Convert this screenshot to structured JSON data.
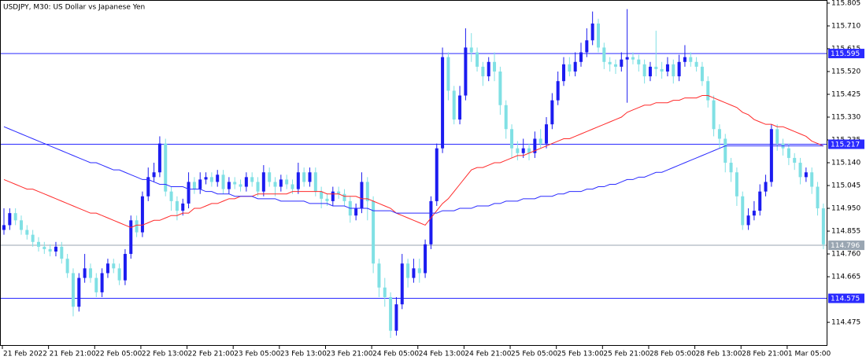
{
  "chart_data": {
    "type": "candlestick",
    "title": "USDJPY, M30:  US Dollar vs Japanese Yen",
    "categories": [
      "21 Feb 2022",
      null,
      null,
      null,
      null,
      null,
      null,
      null,
      "21 Feb 21:00",
      null,
      null,
      null,
      null,
      null,
      null,
      null,
      "22 Feb 05:00",
      null,
      null,
      null,
      null,
      null,
      null,
      null,
      "22 Feb 13:00",
      null,
      null,
      null,
      null,
      null,
      null,
      null,
      "22 Feb 21:00",
      null,
      null,
      null,
      null,
      null,
      null,
      null,
      "23 Feb 05:00",
      null,
      null,
      null,
      null,
      null,
      null,
      null,
      "23 Feb 13:00",
      null,
      null,
      null,
      null,
      null,
      null,
      null,
      "23 Feb 21:00",
      null,
      null,
      null,
      null,
      null,
      null,
      null,
      "24 Feb 05:00",
      null,
      null,
      null,
      null,
      null,
      null,
      null,
      "24 Feb 13:00",
      null,
      null,
      null,
      null,
      null,
      null,
      null,
      "24 Feb 21:00",
      null,
      null,
      null,
      null,
      null,
      null,
      null,
      "25 Feb 05:00",
      null,
      null,
      null,
      null,
      null,
      null,
      null,
      "25 Feb 13:00",
      null,
      null,
      null,
      null,
      null,
      null,
      null,
      "25 Feb 21:00",
      null,
      null,
      null,
      null,
      null,
      null,
      null,
      "28 Feb 05:00",
      null,
      null,
      null,
      null,
      null,
      null,
      null,
      "28 Feb 13:00",
      null,
      null,
      null,
      null,
      null,
      null,
      null,
      "28 Feb 21:00",
      null,
      null,
      null,
      null,
      null,
      null,
      null,
      "1 Mar 05:00",
      null,
      null,
      null,
      null,
      null,
      null
    ],
    "candles": {
      "open": [
        114.86,
        114.88,
        114.93,
        114.9,
        114.86,
        114.84,
        114.81,
        114.79,
        114.78,
        114.77,
        114.79,
        114.74,
        114.68,
        114.54,
        114.66,
        114.7,
        114.66,
        114.6,
        114.68,
        114.72,
        114.7,
        114.65,
        114.76,
        114.9,
        114.85,
        115.0,
        115.08,
        115.1,
        115.22,
        115.02,
        114.98,
        114.94,
        114.97,
        115.06,
        115.03,
        115.07,
        115.08,
        115.06,
        115.09,
        115.03,
        115.06,
        115.05,
        115.04,
        115.08,
        115.06,
        115.02,
        115.1,
        115.06,
        115.04,
        115.07,
        115.05,
        115.03,
        115.1,
        115.06,
        115.1,
        115.02,
        114.99,
        114.98,
        115.02,
        115.01,
        114.98,
        114.92,
        114.95,
        115.06,
        114.98,
        114.72,
        114.62,
        114.58,
        114.44,
        114.55,
        114.72,
        114.66,
        114.7,
        114.68,
        114.8,
        114.98,
        115.2,
        115.58,
        115.44,
        115.32,
        115.42,
        115.62,
        115.6,
        115.54,
        115.5,
        115.56,
        115.52,
        115.38,
        115.28,
        115.2,
        115.18,
        115.2,
        115.18,
        115.24,
        115.22,
        115.3,
        115.4,
        115.48,
        115.55,
        115.52,
        115.56,
        115.6,
        115.65,
        115.72,
        115.62,
        115.56,
        115.55,
        115.54,
        115.57,
        115.58,
        115.57,
        115.55,
        115.5,
        115.54,
        115.53,
        115.52,
        115.55,
        115.5,
        115.56,
        115.58,
        115.56,
        115.54,
        115.48,
        115.4,
        115.28,
        115.24,
        115.14,
        115.1,
        115.0,
        114.88,
        114.92,
        114.94,
        115.02,
        115.06,
        115.28,
        115.22,
        115.2,
        115.16,
        115.14,
        115.08,
        115.1,
        115.04,
        114.95
      ],
      "high": [
        114.95,
        114.95,
        114.95,
        114.92,
        114.88,
        114.86,
        114.83,
        114.81,
        114.8,
        114.81,
        114.81,
        114.76,
        114.7,
        114.68,
        114.76,
        114.72,
        114.68,
        114.7,
        114.74,
        114.74,
        114.72,
        114.78,
        114.92,
        114.92,
        115.02,
        115.12,
        115.14,
        115.25,
        115.24,
        115.04,
        115.0,
        114.99,
        115.1,
        115.08,
        115.1,
        115.1,
        115.1,
        115.11,
        115.11,
        115.08,
        115.08,
        115.07,
        115.1,
        115.1,
        115.08,
        115.13,
        115.12,
        115.08,
        115.09,
        115.09,
        115.07,
        115.14,
        115.12,
        115.12,
        115.12,
        115.04,
        115.01,
        115.04,
        115.04,
        115.03,
        115.0,
        114.97,
        115.1,
        115.08,
        115.0,
        114.74,
        114.66,
        114.6,
        114.58,
        114.76,
        114.74,
        114.74,
        114.74,
        114.82,
        115.0,
        115.22,
        115.62,
        115.6,
        115.46,
        115.46,
        115.7,
        115.68,
        115.62,
        115.56,
        115.58,
        115.6,
        115.54,
        115.4,
        115.3,
        115.23,
        115.24,
        115.22,
        115.27,
        115.28,
        115.33,
        115.43,
        115.52,
        115.58,
        115.58,
        115.6,
        115.64,
        115.7,
        115.77,
        115.74,
        115.64,
        115.58,
        115.57,
        115.6,
        115.78,
        115.6,
        115.59,
        115.57,
        115.56,
        115.69,
        115.56,
        115.58,
        115.57,
        115.59,
        115.63,
        115.6,
        115.58,
        115.56,
        115.5,
        115.42,
        115.3,
        115.26,
        115.16,
        115.12,
        115.02,
        114.95,
        114.98,
        115.05,
        115.09,
        115.3,
        115.3,
        115.24,
        115.22,
        115.18,
        115.16,
        115.12,
        115.12,
        115.06,
        114.97
      ],
      "low": [
        114.84,
        114.86,
        114.88,
        114.84,
        114.82,
        114.79,
        114.77,
        114.76,
        114.75,
        114.75,
        114.72,
        114.66,
        114.5,
        114.52,
        114.64,
        114.64,
        114.58,
        114.58,
        114.66,
        114.68,
        114.63,
        114.63,
        114.74,
        114.83,
        114.83,
        114.98,
        115.06,
        115.08,
        115.0,
        114.94,
        114.9,
        114.92,
        114.95,
        115.01,
        115.01,
        115.05,
        115.04,
        115.04,
        115.01,
        115.01,
        115.03,
        115.02,
        115.02,
        115.04,
        115.0,
        115.0,
        115.04,
        115.0,
        115.02,
        115.03,
        115.01,
        115.01,
        115.04,
        115.04,
        115.0,
        114.95,
        114.96,
        114.96,
        114.99,
        114.96,
        114.89,
        114.9,
        114.93,
        114.9,
        114.68,
        114.58,
        114.54,
        114.41,
        114.42,
        114.53,
        114.62,
        114.64,
        114.64,
        114.66,
        114.78,
        114.96,
        115.18,
        115.4,
        115.3,
        115.3,
        115.4,
        115.56,
        115.52,
        115.46,
        115.48,
        115.48,
        115.34,
        115.24,
        115.16,
        115.15,
        115.16,
        115.15,
        115.16,
        115.2,
        115.2,
        115.28,
        115.38,
        115.46,
        115.5,
        115.5,
        115.54,
        115.58,
        115.63,
        115.6,
        115.53,
        115.52,
        115.51,
        115.52,
        115.39,
        115.55,
        115.52,
        115.47,
        115.48,
        115.5,
        115.49,
        115.5,
        115.47,
        115.48,
        115.54,
        115.54,
        115.52,
        115.46,
        115.37,
        115.25,
        115.2,
        115.1,
        115.06,
        114.96,
        114.86,
        114.86,
        114.9,
        114.92,
        115.0,
        115.04,
        115.19,
        115.17,
        115.13,
        115.11,
        115.05,
        115.06,
        115.01,
        114.92,
        114.78
      ],
      "close": [
        114.88,
        114.93,
        114.9,
        114.86,
        114.84,
        114.81,
        114.79,
        114.78,
        114.77,
        114.79,
        114.74,
        114.68,
        114.54,
        114.66,
        114.7,
        114.66,
        114.6,
        114.68,
        114.72,
        114.7,
        114.65,
        114.76,
        114.9,
        114.85,
        115.0,
        115.08,
        115.1,
        115.22,
        115.02,
        114.98,
        114.94,
        114.97,
        115.06,
        115.03,
        115.07,
        115.08,
        115.06,
        115.09,
        115.03,
        115.06,
        115.05,
        115.04,
        115.08,
        115.06,
        115.02,
        115.1,
        115.06,
        115.04,
        115.07,
        115.05,
        115.03,
        115.1,
        115.06,
        115.1,
        115.02,
        114.99,
        114.98,
        115.02,
        115.01,
        114.98,
        114.92,
        114.95,
        115.06,
        114.98,
        114.72,
        114.62,
        114.58,
        114.44,
        114.55,
        114.72,
        114.66,
        114.7,
        114.68,
        114.8,
        114.98,
        115.2,
        115.58,
        115.44,
        115.32,
        115.42,
        115.62,
        115.6,
        115.54,
        115.5,
        115.56,
        115.52,
        115.38,
        115.28,
        115.2,
        115.18,
        115.2,
        115.18,
        115.24,
        115.22,
        115.3,
        115.4,
        115.48,
        115.55,
        115.52,
        115.56,
        115.6,
        115.65,
        115.72,
        115.62,
        115.56,
        115.55,
        115.54,
        115.57,
        115.58,
        115.57,
        115.55,
        115.5,
        115.54,
        115.53,
        115.52,
        115.55,
        115.5,
        115.56,
        115.58,
        115.56,
        115.54,
        115.48,
        115.4,
        115.28,
        115.24,
        115.14,
        115.1,
        115.0,
        114.88,
        114.92,
        114.94,
        115.02,
        115.06,
        115.28,
        115.22,
        115.2,
        115.16,
        115.14,
        115.08,
        115.1,
        115.04,
        114.95,
        114.8
      ],
      "up_color": "#1c1cf0",
      "down_color": "#80e0e4"
    },
    "lines": [
      {
        "color": "#ff2a2a",
        "values": [
          115.07,
          115.06,
          115.05,
          115.04,
          115.03,
          115.03,
          115.02,
          115.01,
          115.0,
          114.99,
          114.98,
          114.97,
          114.96,
          114.95,
          114.94,
          114.93,
          114.93,
          114.92,
          114.91,
          114.9,
          114.89,
          114.88,
          114.87,
          114.88,
          114.88,
          114.89,
          114.9,
          114.9,
          114.91,
          114.92,
          114.92,
          114.93,
          114.93,
          114.95,
          114.95,
          114.96,
          114.97,
          114.97,
          114.98,
          114.99,
          114.99,
          115.0,
          115.0,
          115.0,
          115.01,
          115.01,
          115.01,
          115.01,
          115.01,
          115.01,
          115.02,
          115.02,
          115.02,
          115.02,
          115.02,
          115.02,
          115.01,
          115.01,
          115.01,
          115.0,
          115.0,
          115.0,
          114.99,
          114.99,
          114.98,
          114.97,
          114.96,
          114.95,
          114.93,
          114.92,
          114.91,
          114.9,
          114.89,
          114.88,
          114.91,
          114.94,
          114.97,
          114.99,
          115.02,
          115.05,
          115.08,
          115.11,
          115.12,
          115.12,
          115.13,
          115.14,
          115.14,
          115.15,
          115.16,
          115.17,
          115.17,
          115.18,
          115.19,
          115.2,
          115.21,
          115.22,
          115.23,
          115.24,
          115.24,
          115.25,
          115.26,
          115.27,
          115.28,
          115.29,
          115.3,
          115.31,
          115.32,
          115.33,
          115.35,
          115.36,
          115.37,
          115.38,
          115.38,
          115.39,
          115.39,
          115.39,
          115.4,
          115.4,
          115.41,
          115.41,
          115.41,
          115.42,
          115.42,
          115.41,
          115.4,
          115.39,
          115.38,
          115.37,
          115.35,
          115.34,
          115.32,
          115.31,
          115.3,
          115.3,
          115.29,
          115.29,
          115.28,
          115.27,
          115.26,
          115.25,
          115.23,
          115.22,
          115.21
        ]
      },
      {
        "color": "#2a2aff",
        "values": [
          115.29,
          115.28,
          115.27,
          115.26,
          115.25,
          115.24,
          115.23,
          115.22,
          115.21,
          115.2,
          115.19,
          115.18,
          115.17,
          115.16,
          115.15,
          115.14,
          115.14,
          115.13,
          115.12,
          115.11,
          115.11,
          115.1,
          115.09,
          115.08,
          115.07,
          115.07,
          115.06,
          115.05,
          115.05,
          115.04,
          115.04,
          115.04,
          115.03,
          115.03,
          115.03,
          115.02,
          115.02,
          115.01,
          115.01,
          115.01,
          115.0,
          115.0,
          115.0,
          115.0,
          114.99,
          114.99,
          114.99,
          114.99,
          114.98,
          114.98,
          114.98,
          114.98,
          114.98,
          114.97,
          114.97,
          114.97,
          114.97,
          114.96,
          114.96,
          114.96,
          114.95,
          114.95,
          114.95,
          114.95,
          114.94,
          114.94,
          114.94,
          114.94,
          114.93,
          114.93,
          114.93,
          114.93,
          114.93,
          114.93,
          114.93,
          114.93,
          114.94,
          114.94,
          114.94,
          114.95,
          114.95,
          114.95,
          114.96,
          114.96,
          114.96,
          114.97,
          114.97,
          114.98,
          114.98,
          114.98,
          114.99,
          114.99,
          114.99,
          115.0,
          115.0,
          115.0,
          115.01,
          115.01,
          115.02,
          115.02,
          115.02,
          115.03,
          115.03,
          115.04,
          115.04,
          115.05,
          115.05,
          115.06,
          115.07,
          115.07,
          115.08,
          115.08,
          115.09,
          115.1,
          115.1,
          115.11,
          115.12,
          115.13,
          115.14,
          115.15,
          115.16,
          115.17,
          115.18,
          115.19,
          115.2,
          115.21,
          115.21,
          115.21,
          115.21,
          115.21,
          115.21,
          115.21,
          115.21,
          115.21,
          115.21,
          115.21,
          115.21,
          115.21,
          115.21,
          115.21,
          115.21,
          115.21,
          115.21
        ]
      }
    ],
    "levels": [
      {
        "value": 115.595,
        "color": "#2a2aff"
      },
      {
        "value": 115.217,
        "color": "#2a2aff"
      },
      {
        "value": 114.575,
        "color": "#2a2aff"
      }
    ],
    "price_line": {
      "value": 114.796,
      "color": "#9aa6b2"
    },
    "ylim": [
      114.377,
      115.818
    ],
    "yticks": [
      115.805,
      {
        "value": 115.71,
        "label": "115.710"
      },
      115.615,
      {
        "value": 115.52,
        "label": "115.520"
      },
      115.425,
      {
        "value": 115.33,
        "label": "115.330"
      },
      115.235,
      {
        "value": 115.14,
        "label": "115.140"
      },
      115.045,
      {
        "value": 114.95,
        "label": "114.950"
      },
      114.855,
      {
        "value": 114.76,
        "label": "114.760"
      },
      114.665,
      114.475
    ]
  }
}
